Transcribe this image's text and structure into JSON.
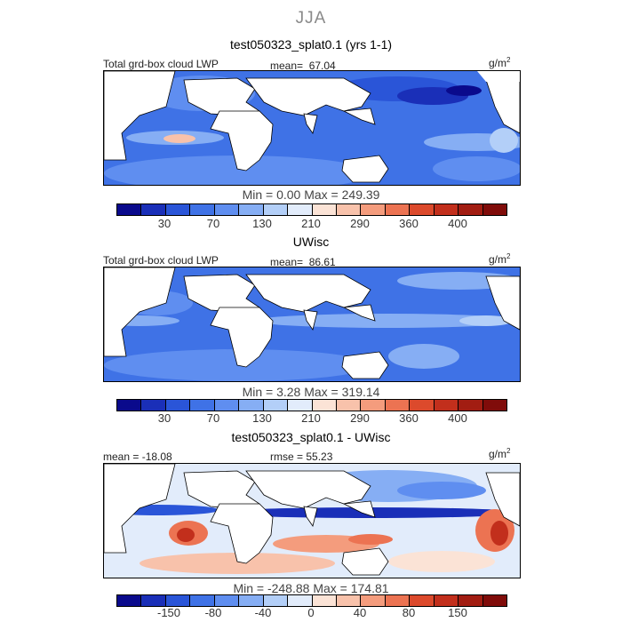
{
  "season": "JJA",
  "unit_base": "g/m",
  "unit_exp": "2",
  "colors": {
    "scale": [
      "#0a0a8c",
      "#1a2fb8",
      "#2a55d8",
      "#3f72e6",
      "#5f8ef0",
      "#86aef4",
      "#b3cff8",
      "#e2ecfb",
      "#fbe3d6",
      "#f8c2ab",
      "#f49c7d",
      "#ec7352",
      "#dc4a2c",
      "#c22f1c",
      "#a21d12",
      "#800c0a"
    ]
  },
  "panels": [
    {
      "title": "test050323_splat0.1 (yrs 1-1)",
      "field": "Total grd-box cloud LWP",
      "mean_label": "mean=",
      "mean_value": "67.04",
      "minmax": "Min =    0.00 Max = 249.39",
      "ticks": [
        "30",
        "70",
        "130",
        "210",
        "290",
        "360",
        "400"
      ]
    },
    {
      "title": "UWisc",
      "field": "Total grd-box cloud LWP",
      "mean_label": "mean=",
      "mean_value": "86.61",
      "minmax": "Min =    3.28 Max = 319.14",
      "ticks": [
        "30",
        "70",
        "130",
        "210",
        "290",
        "360",
        "400"
      ]
    },
    {
      "title": "test050323_splat0.1 - UWisc",
      "mean_text": "mean = -18.08",
      "rmse_text": "rmse =  55.23",
      "minmax": "Min = -248.88 Max = 174.81",
      "ticks": [
        "-150",
        "-80",
        "-40",
        "0",
        "40",
        "80",
        "150"
      ]
    }
  ]
}
